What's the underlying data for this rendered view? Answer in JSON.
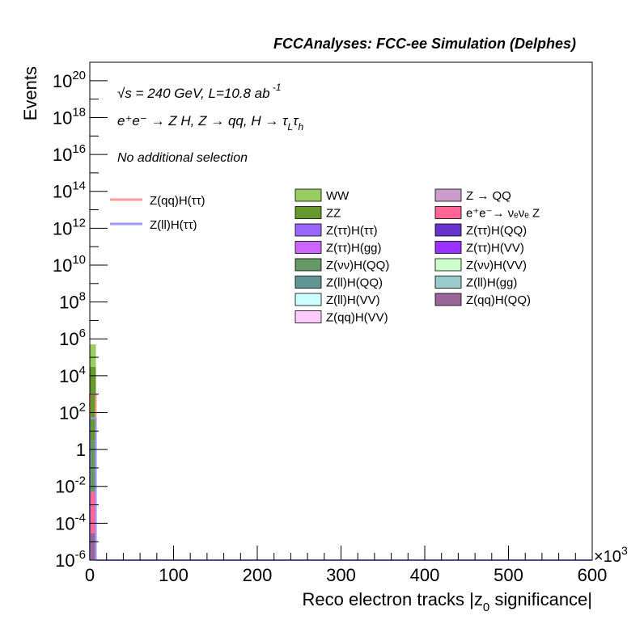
{
  "chart_data": {
    "type": "bar",
    "stacked": true,
    "title": "FCCAnalyses: FCC-ee Simulation (Delphes)",
    "xlabel": "Reco electron tracks |z_{0} significance|",
    "ylabel": "Events",
    "x_multiplier_label": "×10",
    "x_multiplier_exp": "3",
    "xlim": [
      0,
      600
    ],
    "ylim": [
      1e-06,
      1e+21
    ],
    "yscale": "log",
    "x_ticks": [
      "0",
      "100",
      "200",
      "300",
      "400",
      "500",
      "600"
    ],
    "y_tick_labels": [
      {
        "base": "10",
        "exp": "-6",
        "v": 1e-06
      },
      {
        "base": "10",
        "exp": "-4",
        "v": 0.0001
      },
      {
        "base": "10",
        "exp": "-2",
        "v": 0.01
      },
      {
        "base": "1",
        "exp": "",
        "v": 1
      },
      {
        "base": "10",
        "exp": "2",
        "v": 100.0
      },
      {
        "base": "10",
        "exp": "4",
        "v": 10000.0
      },
      {
        "base": "10",
        "exp": "6",
        "v": 1000000.0
      },
      {
        "base": "10",
        "exp": "8",
        "v": 100000000.0
      },
      {
        "base": "10",
        "exp": "10",
        "v": 10000000000.0
      },
      {
        "base": "10",
        "exp": "12",
        "v": 1000000000000.0
      },
      {
        "base": "10",
        "exp": "14",
        "v": 100000000000000.0
      },
      {
        "base": "10",
        "exp": "16",
        "v": 1e+16
      },
      {
        "base": "10",
        "exp": "18",
        "v": 1e+18
      },
      {
        "base": "10",
        "exp": "20",
        "v": 1e+20
      }
    ],
    "annotations": {
      "energy": "√s = 240 GeV, L=10.8 ab",
      "energy_exp": "-1",
      "process": "e⁺e⁻ → Z H, Z → qq, H → τ",
      "process_sub1": "L",
      "process_tau2": "τ",
      "process_sub2": "h",
      "selection": "No additional selection"
    },
    "signal_legend": [
      {
        "name": "Z(qq)H(ττ)",
        "color": "#ff9a9a"
      },
      {
        "name": "Z(ll)H(ττ)",
        "color": "#9a9aff"
      }
    ],
    "background_legend": [
      {
        "name": "WW",
        "color": "#98cd62"
      },
      {
        "name": "Z → QQ",
        "color": "#cc9ccc"
      },
      {
        "name": "ZZ",
        "color": "#66992f"
      },
      {
        "name": "e⁺e⁻→ νₑνₑ Z",
        "color": "#ff6698"
      },
      {
        "name": "Z(ττ)H(ττ)",
        "color": "#9966ff"
      },
      {
        "name": "Z(ττ)H(QQ)",
        "color": "#6633cc"
      },
      {
        "name": "Z(ττ)H(gg)",
        "color": "#cc66ff"
      },
      {
        "name": "Z(ττ)H(VV)",
        "color": "#9933ff"
      },
      {
        "name": "Z(νν)H(QQ)",
        "color": "#669966"
      },
      {
        "name": "Z(νν)H(VV)",
        "color": "#ccffcc"
      },
      {
        "name": "Z(ll)H(QQ)",
        "color": "#5f9595"
      },
      {
        "name": "Z(ll)H(gg)",
        "color": "#99cccc"
      },
      {
        "name": "Z(ll)H(VV)",
        "color": "#ccffff"
      },
      {
        "name": "Z(qq)H(QQ)",
        "color": "#996699"
      },
      {
        "name": "Z(qq)H(VV)",
        "color": "#ffccff"
      }
    ],
    "stack_bins": [
      {
        "x0": 0,
        "x1": 1.5,
        "segments": [
          {
            "name": "Z(qq)H(QQ)",
            "value": 3e-05,
            "color": "#996699"
          },
          {
            "name": "e⁺e⁻→ νₑνₑ Z",
            "value": 0.005,
            "color": "#ff6698"
          },
          {
            "name": "Z(νν)H(QQ)",
            "value": 3,
            "color": "#669966"
          },
          {
            "name": "ZZ",
            "value": 30000.0,
            "color": "#66992f"
          },
          {
            "name": "WW",
            "value": 500000.0,
            "color": "#98cd62"
          }
        ]
      }
    ],
    "signal_curves": [
      {
        "name": "Z(qq)H(ττ)",
        "color": "#ff9a9a",
        "x0": 0,
        "x1": 1.5,
        "value": 1000.0
      },
      {
        "name": "Z(ll)H(ττ)",
        "color": "#9a9aff",
        "x0": 0,
        "x1": 1.5,
        "value": 50
      }
    ]
  }
}
